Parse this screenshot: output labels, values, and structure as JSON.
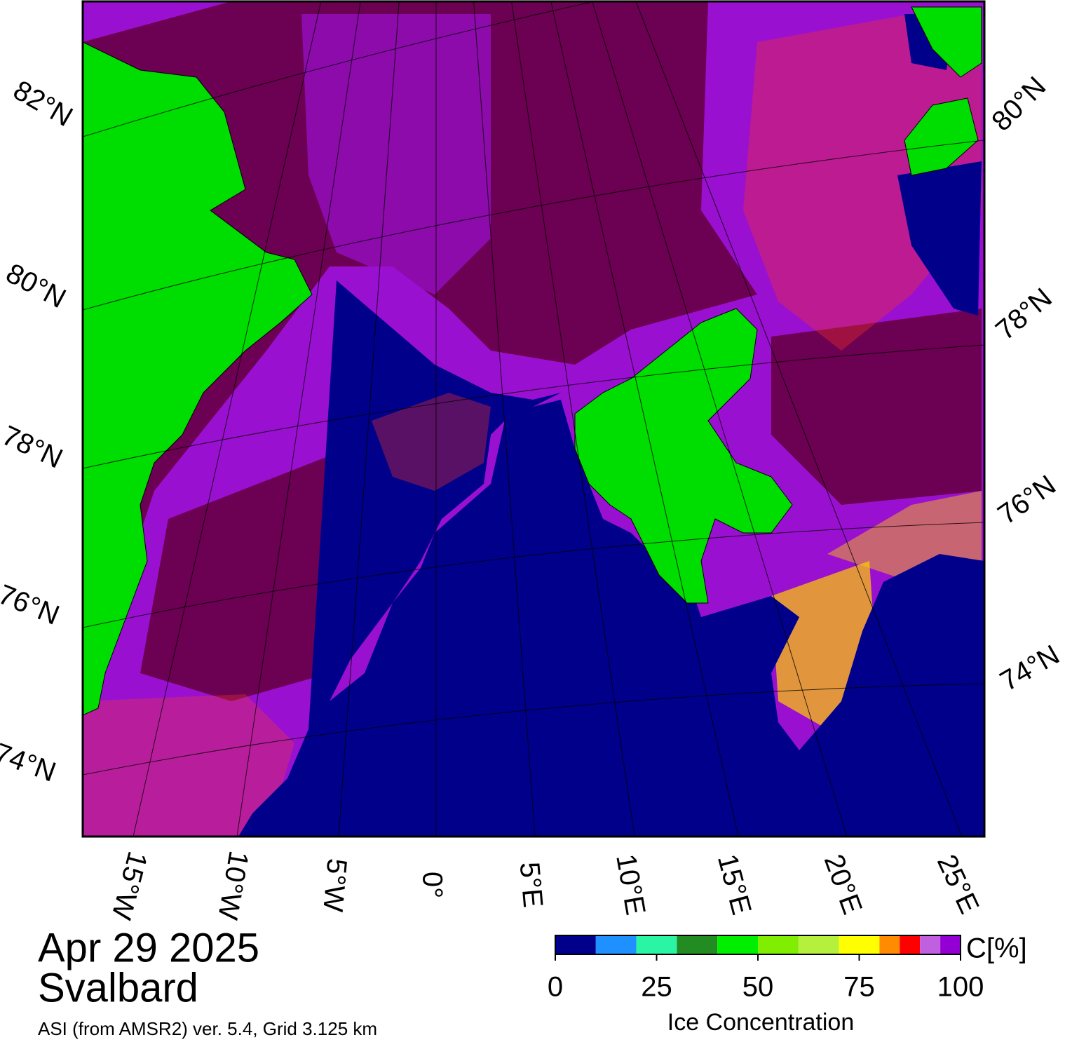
{
  "map": {
    "lat_labels_left": [
      "82°N",
      "80°N",
      "78°N",
      "76°N",
      "74°N"
    ],
    "lat_labels_right": [
      "80°N",
      "78°N",
      "76°N",
      "74°N"
    ],
    "lon_labels": [
      "15°W",
      "10°W",
      "5°W",
      "0°",
      "5°E",
      "10°E",
      "15°E",
      "20°E",
      "25°E"
    ]
  },
  "footer": {
    "date": "Apr 29 2025",
    "region": "Svalbard",
    "source": "ASI (from AMSR2) ver. 5.4,  Grid 3.125 km"
  },
  "colorbar": {
    "title": "Ice Concentration",
    "unit": "C[%]",
    "bounds": [
      0,
      10,
      20,
      30,
      40,
      50,
      60,
      70,
      80,
      85,
      90,
      95,
      100
    ],
    "colors": [
      "#00008b",
      "#1e90ff",
      "#2af5a5",
      "#228b22",
      "#00ee00",
      "#7fee00",
      "#b4f03c",
      "#ffff00",
      "#ff8c00",
      "#ff0000",
      "#c060e0",
      "#9400d3"
    ],
    "ticks": [
      0,
      25,
      50,
      75,
      100
    ]
  }
}
